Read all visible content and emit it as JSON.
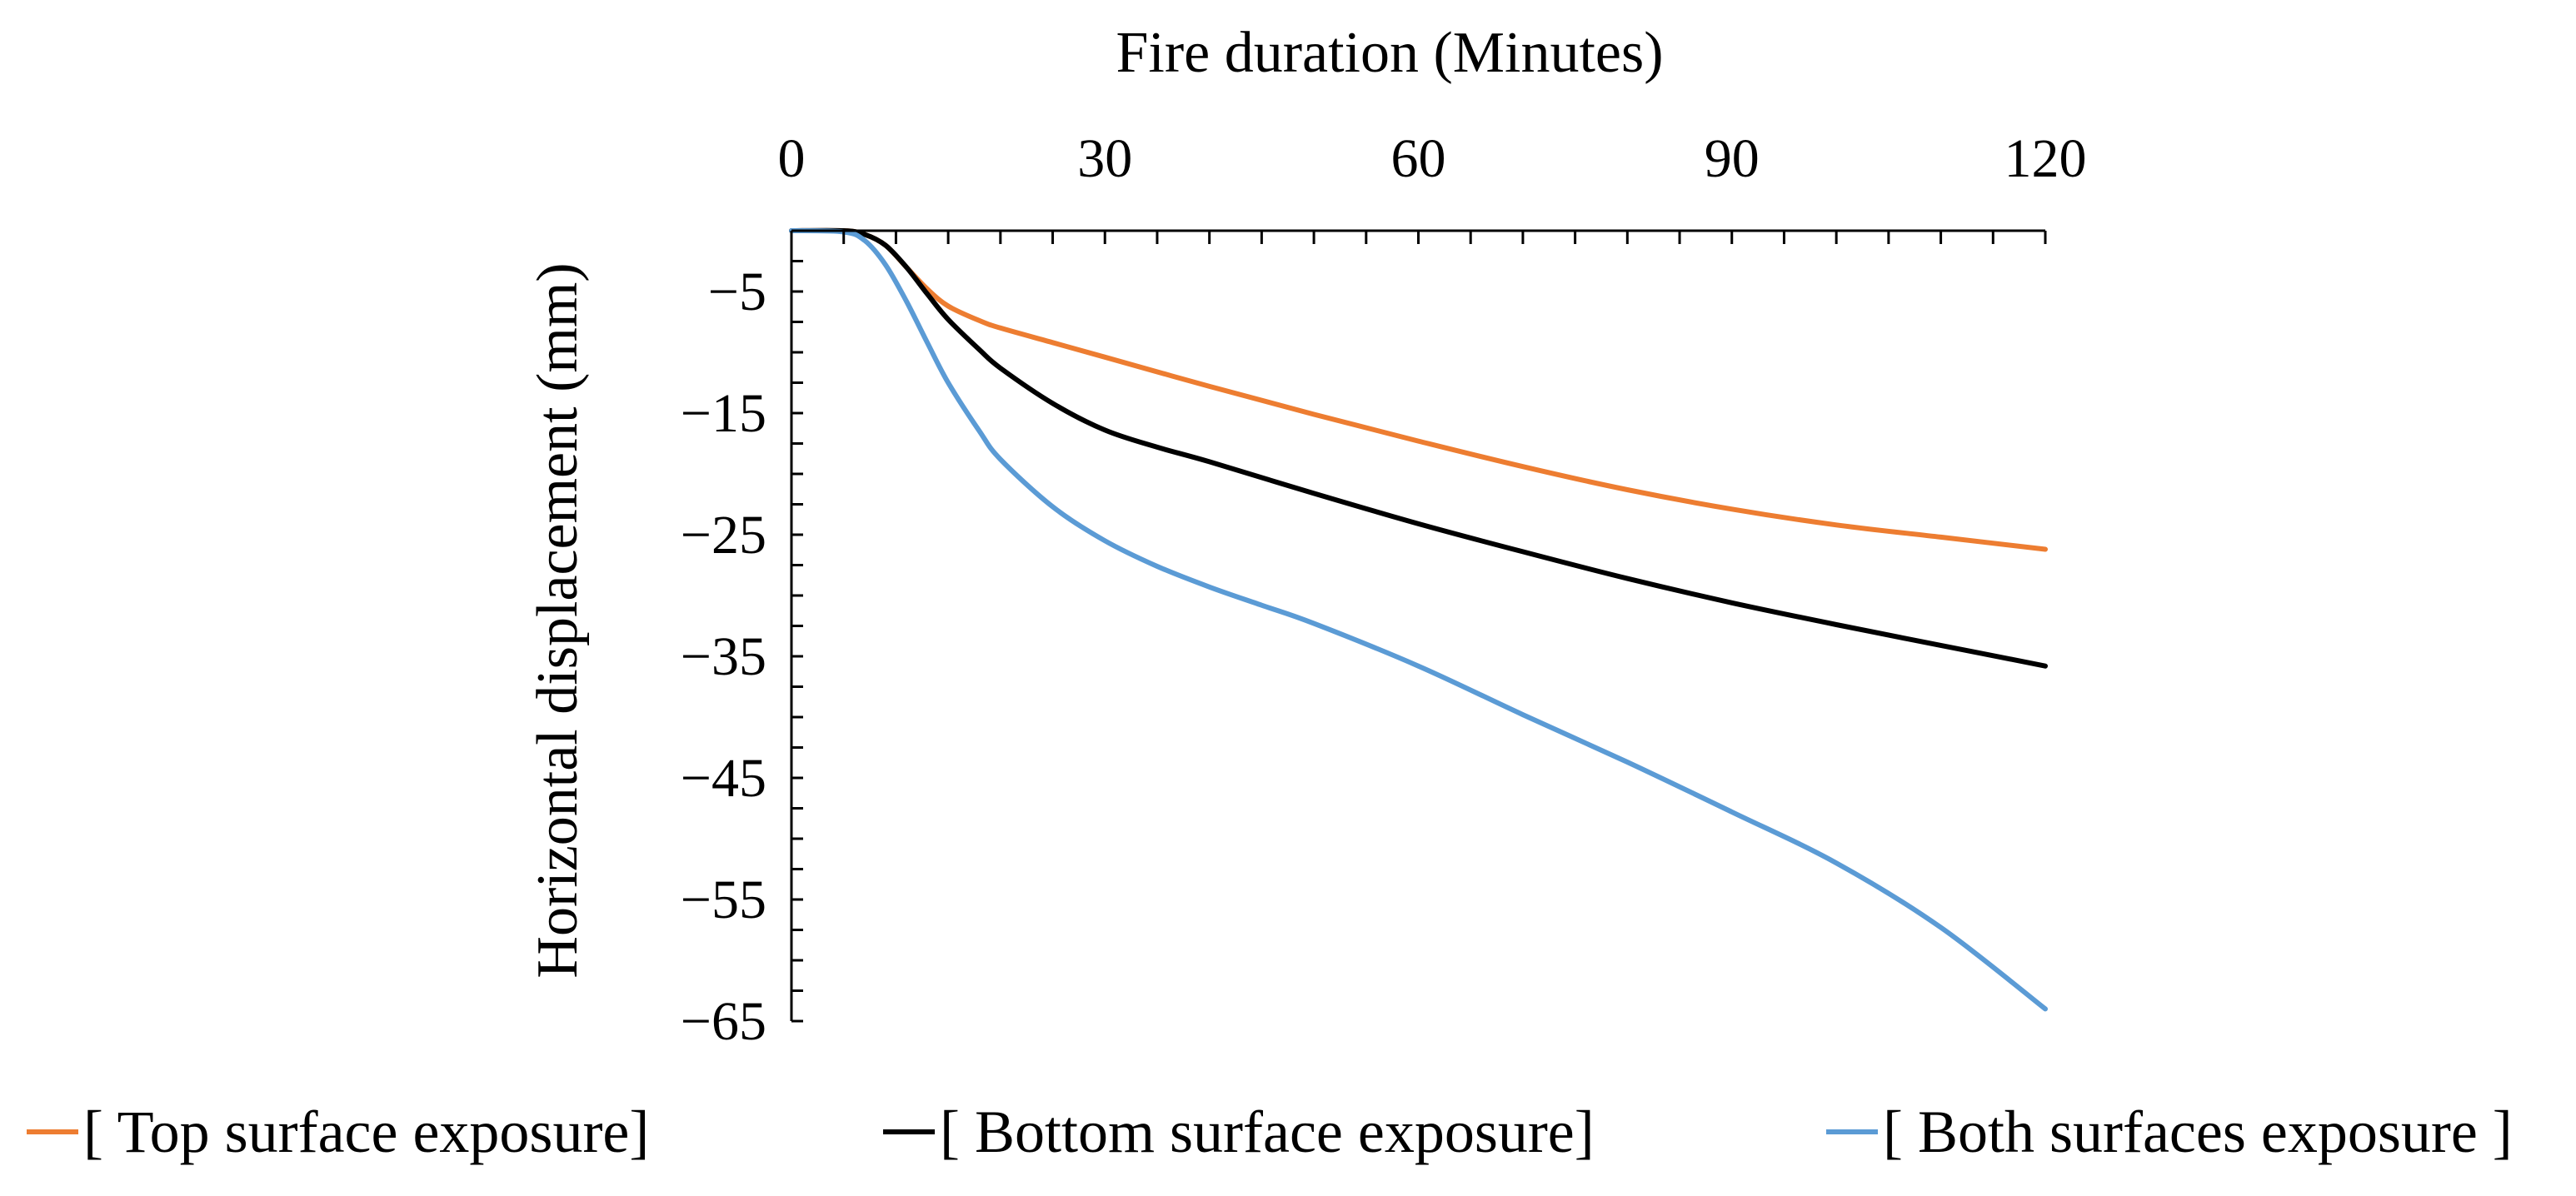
{
  "chart_data": {
    "type": "line",
    "title": "",
    "xlabel": "Fire duration (Minutes)",
    "ylabel": "Horizontal displacement (mm)",
    "xlim": [
      0,
      120
    ],
    "ylim": [
      -65,
      0
    ],
    "xticks": [
      0,
      30,
      60,
      90,
      120
    ],
    "xtick_labels": [
      "0",
      "30",
      "60",
      "90",
      "120"
    ],
    "yticks": [
      -5,
      -15,
      -25,
      -35,
      -45,
      -55,
      -65
    ],
    "ytick_labels": [
      "−5",
      "−15",
      "−25",
      "−35",
      "−45",
      "−55",
      "−65"
    ],
    "x_axis_position": "top",
    "grid": false,
    "legend_position": "bottom",
    "series": [
      {
        "name": "[ Top surface exposure]",
        "color": "#ED7D31",
        "x": [
          0,
          5,
          7,
          9,
          11,
          13,
          15,
          18,
          20,
          25,
          30,
          40,
          50,
          60,
          70,
          80,
          90,
          100,
          110,
          120
        ],
        "y": [
          0,
          0,
          -0.3,
          -1.2,
          -3.0,
          -4.8,
          -6.2,
          -7.4,
          -8.0,
          -9.2,
          -10.4,
          -12.8,
          -15.1,
          -17.3,
          -19.4,
          -21.3,
          -22.9,
          -24.2,
          -25.2,
          -26.2
        ]
      },
      {
        "name": "[ Bottom surface exposure]",
        "color": "#000000",
        "x": [
          0,
          5,
          7,
          9,
          11,
          13,
          15,
          18,
          20,
          25,
          30,
          35,
          40,
          50,
          60,
          70,
          80,
          90,
          100,
          110,
          120
        ],
        "y": [
          0,
          0,
          -0.3,
          -1.2,
          -3.0,
          -5.2,
          -7.3,
          -9.8,
          -11.3,
          -14.2,
          -16.4,
          -17.8,
          -19.0,
          -21.6,
          -24.1,
          -26.4,
          -28.6,
          -30.6,
          -32.4,
          -34.1,
          -35.8
        ]
      },
      {
        "name": "[ Both surfaces exposure ]",
        "color": "#5B9BD5",
        "x": [
          0,
          5,
          7,
          9,
          11,
          13,
          15,
          18,
          20,
          25,
          30,
          35,
          40,
          45,
          50,
          60,
          70,
          80,
          90,
          100,
          110,
          120
        ],
        "y": [
          0,
          -0.1,
          -0.8,
          -2.8,
          -5.8,
          -9.2,
          -12.5,
          -16.5,
          -18.8,
          -22.7,
          -25.5,
          -27.6,
          -29.3,
          -30.8,
          -32.3,
          -35.8,
          -39.8,
          -43.7,
          -47.8,
          -52.0,
          -57.3,
          -64.0
        ]
      }
    ]
  }
}
